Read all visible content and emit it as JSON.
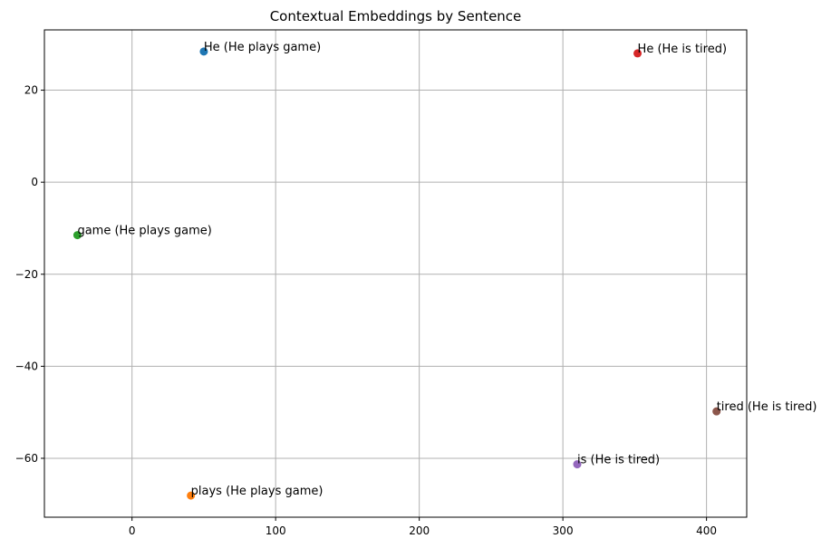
{
  "chart_data": {
    "type": "scatter",
    "title": "Contextual Embeddings by Sentence",
    "xlabel": "",
    "ylabel": "",
    "xlim": [
      -61,
      428
    ],
    "ylim": [
      -72.8,
      33.1
    ],
    "xticks": [
      0,
      100,
      200,
      300,
      400
    ],
    "yticks": [
      20,
      0,
      -20,
      -40,
      -60
    ],
    "xtick_labels": [
      "0",
      "100",
      "200",
      "300",
      "400"
    ],
    "ytick_labels": [
      "20",
      "0",
      "−20",
      "−40",
      "−60"
    ],
    "grid": true,
    "points": [
      {
        "label": "He (He plays game)",
        "x": 50,
        "y": 28.4,
        "color": "#1f77b4"
      },
      {
        "label": "plays (He plays game)",
        "x": 41,
        "y": -68.1,
        "color": "#ff7f0e"
      },
      {
        "label": "game (He plays game)",
        "x": -38,
        "y": -11.5,
        "color": "#2ca02c"
      },
      {
        "label": "He (He is tired)",
        "x": 352,
        "y": 28.0,
        "color": "#d62728"
      },
      {
        "label": "is (He is tired)",
        "x": 310,
        "y": -61.3,
        "color": "#9467bd"
      },
      {
        "label": "tired (He is tired)",
        "x": 407,
        "y": -49.8,
        "color": "#8c564b"
      }
    ]
  }
}
